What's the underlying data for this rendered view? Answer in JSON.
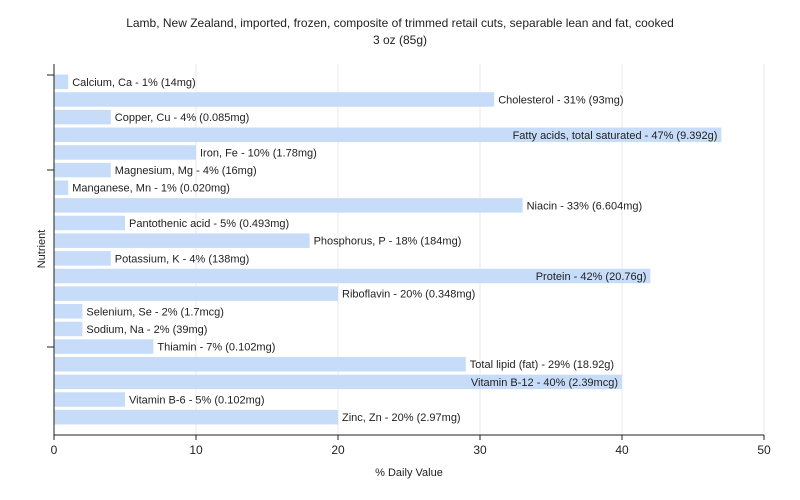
{
  "chart_data": {
    "type": "bar",
    "orientation": "horizontal",
    "title": "Lamb, New Zealand, imported, frozen, composite of trimmed retail cuts, separable lean and fat, cooked",
    "subtitle": "3 oz (85g)",
    "xlabel": "% Daily Value",
    "ylabel": "Nutrient",
    "xlim": [
      0,
      50
    ],
    "xticks": [
      0,
      10,
      20,
      30,
      40,
      50
    ],
    "grid": true,
    "bar_color": "#c6dcf9",
    "categories": [
      "Calcium, Ca",
      "Cholesterol",
      "Copper, Cu",
      "Fatty acids, total saturated",
      "Iron, Fe",
      "Magnesium, Mg",
      "Manganese, Mn",
      "Niacin",
      "Pantothenic acid",
      "Phosphorus, P",
      "Potassium, K",
      "Protein",
      "Riboflavin",
      "Selenium, Se",
      "Sodium, Na",
      "Thiamin",
      "Total lipid (fat)",
      "Vitamin B-12",
      "Vitamin B-6",
      "Zinc, Zn"
    ],
    "values": [
      1,
      31,
      4,
      47,
      10,
      4,
      1,
      33,
      5,
      18,
      4,
      42,
      20,
      2,
      2,
      7,
      29,
      40,
      5,
      20
    ],
    "labels": [
      "Calcium, Ca - 1% (14mg)",
      "Cholesterol - 31% (93mg)",
      "Copper, Cu - 4% (0.085mg)",
      "Fatty acids, total saturated - 47% (9.392g)",
      "Iron, Fe - 10% (1.78mg)",
      "Magnesium, Mg - 4% (16mg)",
      "Manganese, Mn - 1% (0.020mg)",
      "Niacin - 33% (6.604mg)",
      "Pantothenic acid - 5% (0.493mg)",
      "Phosphorus, P - 18% (184mg)",
      "Potassium, K - 4% (138mg)",
      "Protein - 42% (20.76g)",
      "Riboflavin - 20% (0.348mg)",
      "Selenium, Se - 2% (1.7mcg)",
      "Sodium, Na - 2% (39mg)",
      "Thiamin - 7% (0.102mg)",
      "Total lipid (fat) - 29% (18.92g)",
      "Vitamin B-12 - 40% (2.39mcg)",
      "Vitamin B-6 - 5% (0.102mg)",
      "Zinc, Zn - 20% (2.97mg)"
    ]
  }
}
